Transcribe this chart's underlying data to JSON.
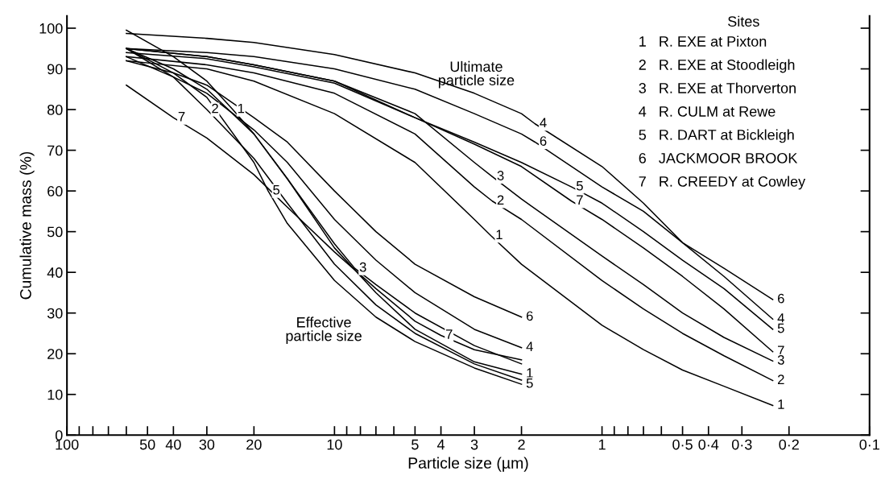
{
  "chart_data": {
    "type": "line",
    "xlabel": "Particle size (µm)",
    "ylabel": "Cumulative mass (%)",
    "log": "x",
    "xlim": [
      100,
      0.1
    ],
    "ylim": [
      0,
      103
    ],
    "xticks": [
      100,
      {
        "value": 90,
        "label": null
      },
      {
        "value": 80,
        "label": null
      },
      {
        "value": 70,
        "label": null
      },
      {
        "value": 60,
        "label": null
      },
      50,
      40,
      30,
      20,
      10,
      {
        "value": 9,
        "label": null
      },
      {
        "value": 8,
        "label": null
      },
      {
        "value": 7,
        "label": null
      },
      {
        "value": 6,
        "label": null
      },
      5,
      4,
      3,
      2,
      1,
      {
        "value": 0.9,
        "label": null
      },
      {
        "value": 0.8,
        "label": null
      },
      {
        "value": 0.7,
        "label": null
      },
      {
        "value": 0.6,
        "label": null
      },
      {
        "value": 0.5,
        "label": "0·5"
      },
      {
        "value": 0.4,
        "label": "0·4"
      },
      {
        "value": 0.3,
        "label": "0·3"
      },
      {
        "value": 0.2,
        "label": "0·2"
      },
      {
        "value": 0.1,
        "label": "0·1"
      }
    ],
    "yticks": [
      0,
      10,
      20,
      30,
      40,
      50,
      60,
      70,
      80,
      90,
      100
    ],
    "grid": false,
    "marker": "none",
    "line_style": "solid",
    "series": [
      {
        "color": "#000000",
        "x": [
          60,
          40,
          30,
          24,
          20,
          15,
          10,
          7,
          5,
          3,
          2
        ],
        "values": [
          99.5,
          93,
          87,
          80,
          74,
          63,
          46,
          35,
          26,
          18,
          15
        ]
      },
      {
        "color": "#000000",
        "x": [
          60,
          40,
          30,
          20,
          15,
          10,
          7,
          5,
          3,
          2
        ],
        "values": [
          95,
          88,
          80,
          68,
          57,
          42,
          32,
          25,
          17.5,
          13.5
        ]
      },
      {
        "color": "#000000",
        "x": [
          60,
          40,
          30,
          20,
          15,
          10,
          8.4,
          7,
          5,
          3,
          2
        ],
        "values": [
          95,
          90,
          85,
          74,
          63,
          47,
          41,
          37,
          30,
          22,
          17.5
        ]
      },
      {
        "color": "#000000",
        "x": [
          60,
          40,
          30,
          20,
          15,
          10,
          7,
          5,
          3,
          2
        ],
        "values": [
          93,
          88,
          84,
          75,
          67,
          53,
          43,
          35,
          26,
          21.5
        ]
      },
      {
        "color": "#000000",
        "x": [
          60,
          40,
          30,
          20,
          17.7,
          15,
          10,
          7,
          5,
          3,
          2
        ],
        "values": [
          95,
          89,
          83,
          67,
          60,
          52,
          38,
          29,
          23,
          16.5,
          12.5
        ]
      },
      {
        "color": "#000000",
        "x": [
          60,
          40,
          30,
          20,
          15,
          10,
          7,
          5,
          3,
          2
        ],
        "values": [
          92,
          89,
          86,
          78,
          72,
          60,
          50,
          42,
          34,
          29
        ]
      },
      {
        "color": "#000000",
        "x": [
          60,
          40,
          30,
          20,
          15,
          10,
          7,
          5,
          4,
          3,
          2
        ],
        "values": [
          86,
          78,
          73,
          64,
          56,
          45,
          36,
          28,
          24.5,
          21,
          18.5
        ]
      },
      {
        "color": "#000000",
        "x": [
          60,
          30,
          20,
          10,
          5,
          3,
          2.6,
          2,
          1,
          0.7,
          0.5,
          0.35,
          0.23
        ],
        "values": [
          92,
          90,
          87,
          79,
          67,
          53,
          49,
          42,
          27,
          21,
          16,
          12,
          7.3
        ]
      },
      {
        "color": "#000000",
        "x": [
          60,
          30,
          20,
          10,
          5,
          3,
          2.57,
          2,
          1,
          0.7,
          0.5,
          0.35,
          0.23
        ],
        "values": [
          93,
          91,
          89,
          84,
          74,
          61,
          57.5,
          53,
          38,
          31,
          25,
          19.5,
          13.4
        ]
      },
      {
        "color": "#000000",
        "x": [
          60,
          30,
          20,
          10,
          5,
          3,
          2.57,
          2,
          1,
          0.7,
          0.5,
          0.35,
          0.23
        ],
        "values": [
          95,
          93,
          91,
          87,
          79,
          67,
          63.5,
          58,
          44,
          37,
          30,
          24,
          18.2
        ]
      },
      {
        "color": "#000000",
        "x": [
          60,
          30,
          20,
          10,
          5,
          3,
          2,
          1.78,
          1,
          0.7,
          0.5,
          0.35,
          0.23
        ],
        "values": [
          98.7,
          97.5,
          96.5,
          93.5,
          89,
          84,
          79,
          76.5,
          66,
          57,
          47.3,
          39,
          28.5
        ]
      },
      {
        "color": "#000000",
        "x": [
          60,
          30,
          20,
          10,
          5,
          3,
          2,
          1.3,
          1,
          0.7,
          0.5,
          0.35,
          0.23
        ],
        "values": [
          95,
          93,
          91,
          87,
          78,
          72,
          67,
          61,
          57,
          50,
          43,
          36,
          26
        ]
      },
      {
        "color": "#000000",
        "x": [
          60,
          30,
          20,
          10,
          5,
          3,
          2,
          1.78,
          1,
          0.7,
          0.5,
          0.35,
          0.23
        ],
        "values": [
          95,
          94,
          93,
          90,
          85,
          79,
          74,
          72,
          61,
          55,
          47.3,
          41,
          33.3
        ]
      },
      {
        "color": "#000000",
        "x": [
          60,
          30,
          20,
          10,
          5,
          3,
          2,
          1.3,
          1,
          0.7,
          0.5,
          0.35,
          0.23
        ],
        "values": [
          94,
          92.5,
          90.5,
          86.5,
          78,
          71.5,
          66,
          57.5,
          53,
          46,
          39,
          31,
          20.5
        ]
      }
    ],
    "annotations": [
      "Ultimate\nparticle size",
      "Effective\nparticle size",
      {
        "text": "1",
        "x": 24,
        "y": 80
      },
      {
        "text": "2",
        "x": 30,
        "y": 80
      },
      {
        "text": "7",
        "x": 40,
        "y": 78
      },
      {
        "text": "5",
        "x": 17.7,
        "y": 60
      },
      {
        "text": "3",
        "x": 8.4,
        "y": 41
      },
      {
        "text": "7",
        "x": 4,
        "y": 24.5
      },
      {
        "text": "6",
        "x": 2,
        "y": 29
      },
      {
        "text": "4",
        "x": 2,
        "y": 21.5
      },
      {
        "text": "1",
        "x": 2,
        "y": 15
      },
      {
        "text": "5",
        "x": 2,
        "y": 12.5
      },
      {
        "text": "4",
        "x": 1.78,
        "y": 76.5
      },
      {
        "text": "6",
        "x": 1.78,
        "y": 72
      },
      {
        "text": "3",
        "x": 2.57,
        "y": 63.5
      },
      {
        "text": "2",
        "x": 2.57,
        "y": 57.5
      },
      {
        "text": "1",
        "x": 2.6,
        "y": 49
      },
      {
        "text": "5",
        "x": 1.3,
        "y": 61
      },
      {
        "text": "7",
        "x": 1.3,
        "y": 57.5
      },
      {
        "text": "6",
        "x": 0.23,
        "y": 33.3
      },
      {
        "text": "4",
        "x": 0.23,
        "y": 28.5
      },
      {
        "text": "5",
        "x": 0.23,
        "y": 26
      },
      {
        "text": "7",
        "x": 0.23,
        "y": 20.5
      },
      {
        "text": "3",
        "x": 0.23,
        "y": 18.2
      },
      {
        "text": "2",
        "x": 0.23,
        "y": 13.4
      },
      {
        "text": "1",
        "x": 0.23,
        "y": 7.3
      },
      "Sites",
      "1   R. EXE at Pixton",
      "2   R. EXE at Stoodleigh",
      "3   R. EXE at Thorverton",
      "4   R. CULM at Rewe",
      "5   R. DART at Bickleigh",
      "6   JACKMOOR BROOK",
      "7   R. CREEDY at Cowley"
    ]
  }
}
